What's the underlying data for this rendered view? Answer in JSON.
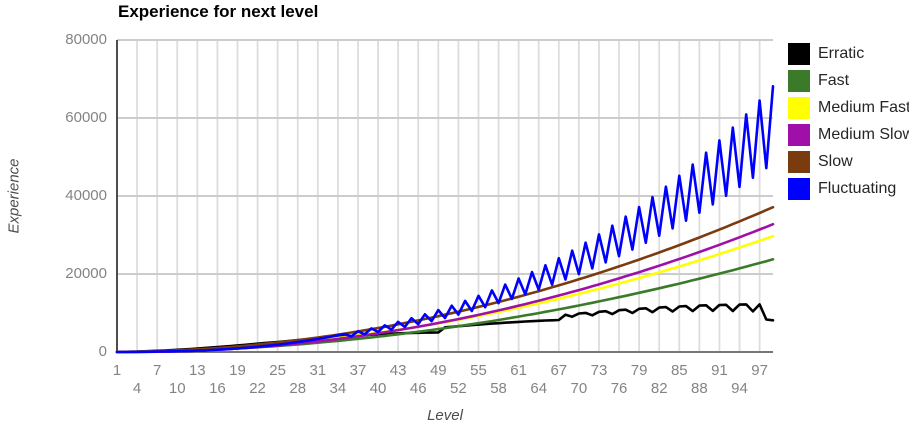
{
  "chart_data": {
    "type": "line",
    "title": "Experience for next level",
    "xlabel": "Level",
    "ylabel": "Experience",
    "xlim": [
      1,
      99
    ],
    "ylim": [
      0,
      80000
    ],
    "x_ticks": [
      1,
      4,
      7,
      10,
      13,
      16,
      19,
      22,
      25,
      28,
      31,
      34,
      37,
      40,
      43,
      46,
      49,
      52,
      55,
      58,
      61,
      64,
      67,
      70,
      73,
      76,
      79,
      82,
      85,
      88,
      91,
      94,
      97
    ],
    "x_tick_stagger": "alternating ticks placed on two rows below the axis",
    "y_ticks": [
      0,
      20000,
      40000,
      60000,
      80000
    ],
    "grid": true,
    "legend_position": "right",
    "value_definition": "y(n) = floor(EXP(n+1)) - floor(EXP(n)) for level n = 1..99, where EXP is the total-experience growth formula of each group",
    "sample_levels": [
      1,
      7,
      13,
      19,
      25,
      31,
      37,
      43,
      49,
      55,
      61,
      67,
      73,
      79,
      85,
      91,
      97
    ],
    "series": [
      {
        "name": "Erratic",
        "color": "#000000",
        "curve": "erratic",
        "formula_total_exp": "n<50: n^3*(100-n)/50 ; 50<=n<68: n^3*(150-n)/100 ; 68<=n<98: n^3*floor((1911-10n)/3)/500 ; n>=98: n^3*(160-n)/100",
        "exp_to_next_at_sample_levels": [
          14,
          305,
          897,
          1689,
          2575,
          3453,
          4219,
          4769,
          4999,
          7023,
          7716,
          8201,
          10307,
          11073,
          11667,
          12056,
          12206
        ],
        "value_at_level_99": 8118
      },
      {
        "name": "Fast",
        "color": "#3a7a28",
        "curve": "fast",
        "formula_total_exp": "4*n^3/5",
        "exp_to_next_at_sample_levels": [
          6,
          135,
          438,
          913,
          1560,
          2382,
          3375,
          4542,
          5881,
          7392,
          9078,
          10935,
          12966,
          15169,
          17544,
          20094,
          22815
        ],
        "value_at_level_99": 23761
      },
      {
        "name": "Medium Fast",
        "color": "#ffff00",
        "curve": "medium_fast",
        "formula_total_exp": "n^3",
        "exp_to_next_at_sample_levels": [
          7,
          169,
          547,
          1141,
          1951,
          2977,
          4219,
          5677,
          7351,
          9241,
          11347,
          13669,
          16207,
          18961,
          21931,
          25117,
          28519
        ],
        "value_at_level_99": 29701
      },
      {
        "name": "Medium Slow",
        "color": "#a010a8",
        "curve": "medium_slow",
        "formula_total_exp": "6*n^3/5 - 15*n^2 + 100*n - 140",
        "exp_to_next_at_sample_levels": [
          63,
          78,
          351,
          885,
          1676,
          2727,
          4038,
          5607,
          7437,
          9524,
          11871,
          14478,
          17343,
          20469,
          23852,
          27495,
          31398
        ],
        "value_at_level_99": 32757
      },
      {
        "name": "Slow",
        "color": "#7a3c0f",
        "curve": "slow",
        "formula_total_exp": "5*n^3/4",
        "exp_to_next_at_sample_levels": [
          9,
          212,
          684,
          1427,
          2439,
          3722,
          5274,
          7097,
          9189,
          11552,
          14184,
          17087,
          20259,
          23702,
          27414,
          31397,
          35649
        ],
        "value_at_level_99": 37127
      },
      {
        "name": "Fluctuating",
        "color": "#0000ff",
        "curve": "fluctuating",
        "formula_total_exp": "n<15: n^3*(floor((n+1)/3)+24)/50 ; 15<=n<36: n^3*(n+14)/50 ; n>=36: n^3*(floor(n/2)+32)/50",
        "exp_to_next_at_sample_levels": [
          4,
          98,
          361,
          914,
          1873,
          3335,
          5316,
          7721,
          10734,
          14417,
          18837,
          24059,
          30146,
          37165,
          45179,
          54254,
          64455
        ],
        "value_at_level_99": 68116
      }
    ],
    "style": {
      "grid_vertical_color": "#dddddd",
      "grid_horizontal_color": "#cccccc",
      "y_axis_color": "#4d4d4d",
      "x_axis_color": "#777777",
      "tick_label_color": "#848484",
      "axis_title_color": "#4d4d4d",
      "legend_text_color": "#262626",
      "title_color": "#000000"
    }
  }
}
